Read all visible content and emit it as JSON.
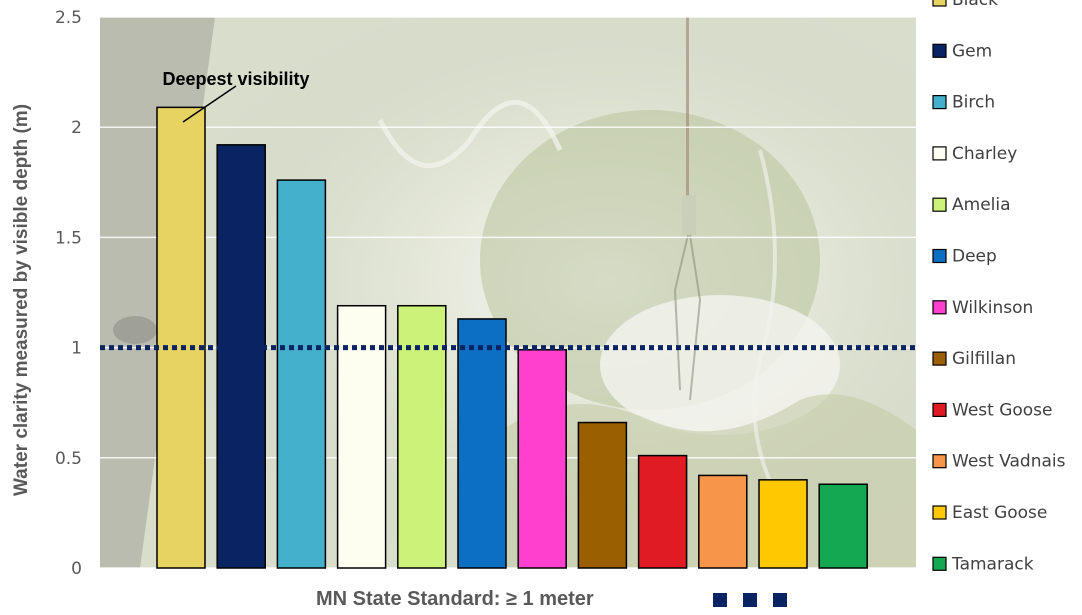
{
  "chart_data": {
    "type": "bar",
    "ylabel": "Water clarity measured by visible depth (m)",
    "xlabel": "",
    "ylim": [
      0,
      2.5
    ],
    "yticks": [
      "0",
      "0.5",
      "1",
      "1.5",
      "2",
      "2.5"
    ],
    "grid": true,
    "legend_position": "right",
    "categories": [
      "Black",
      "Gem",
      "Birch",
      "Charley",
      "Amelia",
      "Deep",
      "Wilkinson",
      "Gilfillan",
      "West Goose",
      "West Vadnais",
      "East Goose",
      "Tamarack"
    ],
    "values": [
      2.09,
      1.92,
      1.76,
      1.19,
      1.19,
      1.13,
      0.99,
      0.66,
      0.51,
      0.42,
      0.4,
      0.38
    ],
    "colors": [
      "#e6d361",
      "#0a2463",
      "#45b0cc",
      "#fefef0",
      "#cdf27a",
      "#0c6fc4",
      "#ff3fcd",
      "#9a5f00",
      "#e01b23",
      "#f7964a",
      "#ffc800",
      "#14a852"
    ],
    "reference_line": {
      "value": 1,
      "color": "#0a2463",
      "style": "dotted"
    },
    "annotation": {
      "text": "Deepest visibility",
      "target": "Black"
    },
    "footnote": "MN State Standard: ≥ 1 meter"
  }
}
